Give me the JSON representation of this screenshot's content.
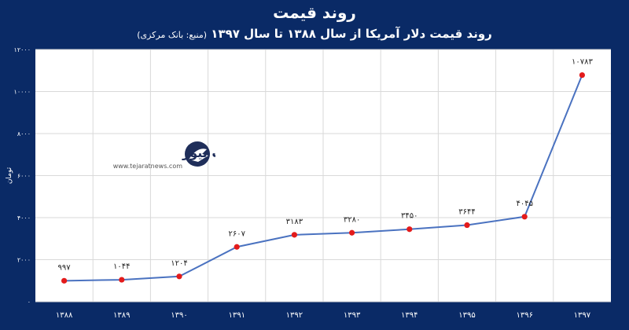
{
  "header": {
    "title": "روند قیمت",
    "subtitle": "روند قیمت دلار آمریکا از سال ۱۳۸۸ تا سال ۱۳۹۷",
    "source": "(منبع: بانک مرکزی)"
  },
  "watermark": {
    "brand": "تجارت نیوز",
    "url": "www.tejaratnews.com"
  },
  "colors": {
    "background": "#0a2a66",
    "plot_area": "#ffffff",
    "line": "#4a72c0",
    "marker": "#e31b1b",
    "grid": "#d9d9d9"
  },
  "chart_data": {
    "type": "line",
    "categories": [
      "۱۳۸۸",
      "۱۳۸۹",
      "۱۳۹۰",
      "۱۳۹۱",
      "۱۳۹۲",
      "۱۳۹۳",
      "۱۳۹۴",
      "۱۳۹۵",
      "۱۳۹۶",
      "۱۳۹۷"
    ],
    "values": [
      997,
      1044,
      1204,
      2607,
      3183,
      3280,
      3450,
      3644,
      4045,
      10783
    ],
    "data_labels": [
      "۹۹۷",
      "۱۰۴۴",
      "۱۲۰۴",
      "۲۶۰۷",
      "۳۱۸۳",
      "۳۲۸۰",
      "۳۴۵۰",
      "۳۶۴۴",
      "۴۰۴۵",
      "۱۰۷۸۳"
    ],
    "ylabel": "تومان",
    "ylim": [
      0,
      12000
    ],
    "yticks": [
      0,
      2000,
      4000,
      6000,
      8000,
      10000,
      12000
    ],
    "ytick_labels": [
      "۰",
      "۲۰۰۰",
      "۴۰۰۰",
      "۶۰۰۰",
      "۸۰۰۰",
      "۱۰۰۰۰",
      "۱۲۰۰۰"
    ],
    "grid": true,
    "legend": "none"
  }
}
